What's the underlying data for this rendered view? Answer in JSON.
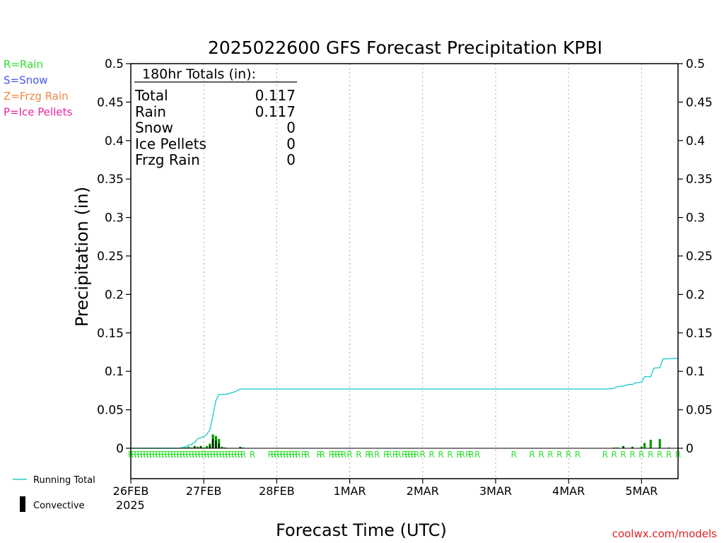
{
  "chart_data": {
    "type": "bar",
    "title": "2025022600 GFS Forecast Precipitation KPBI",
    "ylabel": "Precipitation (in)",
    "xlabel": "Forecast Time (UTC)",
    "ylim": [
      0,
      0.5
    ],
    "y_ticks": [
      "0",
      "0.05",
      "0.1",
      "0.15",
      "0.2",
      "0.25",
      "0.3",
      "0.35",
      "0.4",
      "0.45",
      "0.5"
    ],
    "x_tick_labels": [
      "26FEB",
      "27FEB",
      "28FEB",
      "1MAR",
      "2MAR",
      "3MAR",
      "4MAR",
      "5MAR"
    ],
    "x_year_label": "2025",
    "x_range_hours": [
      0,
      180
    ],
    "grid": "vertical dotted at day boundaries",
    "legend_left": [
      {
        "label": "R=Rain",
        "color": "#33dd33"
      },
      {
        "label": "S=Snow",
        "color": "#4455ee"
      },
      {
        "label": "Z=Frzg Rain",
        "color": "#ee8844"
      },
      {
        "label": "P=Ice Pellets",
        "color": "#ee2299"
      }
    ],
    "legend_bottom": [
      {
        "label": "Running Total",
        "color": "#22cccc",
        "kind": "line"
      },
      {
        "label": "Convective",
        "color": "#000000",
        "kind": "bar"
      }
    ],
    "totals_box": {
      "header": "180hr Totals (in):",
      "rows": [
        {
          "label": "Total",
          "value": "0.117"
        },
        {
          "label": "Rain",
          "value": "0.117"
        },
        {
          "label": "Snow",
          "value": "0"
        },
        {
          "label": "Ice Pellets",
          "value": "0"
        },
        {
          "label": "Frzg Rain",
          "value": "0"
        }
      ]
    },
    "series": [
      {
        "name": "Running Total",
        "color": "#22cccc",
        "points": [
          [
            0,
            0
          ],
          [
            16,
            0
          ],
          [
            17,
            0.001
          ],
          [
            18,
            0.002
          ],
          [
            19,
            0.004
          ],
          [
            20,
            0.005
          ],
          [
            21,
            0.008
          ],
          [
            22,
            0.012
          ],
          [
            23,
            0.014
          ],
          [
            24,
            0.015
          ],
          [
            25,
            0.018
          ],
          [
            26,
            0.024
          ],
          [
            27,
            0.042
          ],
          [
            28,
            0.062
          ],
          [
            29,
            0.07
          ],
          [
            30,
            0.07
          ],
          [
            31,
            0.07
          ],
          [
            32,
            0.071
          ],
          [
            34,
            0.073
          ],
          [
            35,
            0.075
          ],
          [
            36,
            0.077
          ],
          [
            156,
            0.077
          ],
          [
            157,
            0.077
          ],
          [
            159,
            0.078
          ],
          [
            160,
            0.08
          ],
          [
            162,
            0.081
          ],
          [
            164,
            0.083
          ],
          [
            165,
            0.083
          ],
          [
            166,
            0.085
          ],
          [
            168,
            0.086
          ],
          [
            169,
            0.093
          ],
          [
            171,
            0.093
          ],
          [
            172,
            0.104
          ],
          [
            174,
            0.105
          ],
          [
            175,
            0.116
          ],
          [
            180,
            0.117
          ]
        ]
      },
      {
        "name": "Precipitation",
        "color": "#009900",
        "bars": [
          [
            17,
            0.001
          ],
          [
            18,
            0.001
          ],
          [
            19,
            0.002
          ],
          [
            20,
            0.001
          ],
          [
            21,
            0.003
          ],
          [
            22,
            0.002
          ],
          [
            23,
            0.003
          ],
          [
            24,
            0.001
          ],
          [
            25,
            0.003
          ],
          [
            26,
            0.006
          ],
          [
            27,
            0.018
          ],
          [
            28,
            0.016
          ],
          [
            29,
            0.012
          ],
          [
            30,
            0.002
          ],
          [
            31,
            0.001
          ],
          [
            36,
            0.002
          ],
          [
            37,
            0.001
          ],
          [
            159,
            0.001
          ],
          [
            160,
            0.001
          ],
          [
            162,
            0.003
          ],
          [
            165,
            0.002
          ],
          [
            168,
            0.002
          ],
          [
            169,
            0.007
          ],
          [
            171,
            0.011
          ],
          [
            174,
            0.012
          ],
          [
            177,
            0.001
          ]
        ]
      },
      {
        "name": "Convective",
        "color": "#000000",
        "bars": [
          [
            21,
            0.002
          ],
          [
            23,
            0.002
          ],
          [
            26,
            0.003
          ],
          [
            27,
            0.012
          ],
          [
            28,
            0.01
          ],
          [
            29,
            0.006
          ],
          [
            36,
            0.001
          ],
          [
            162,
            0.002
          ],
          [
            165,
            0.001
          ]
        ]
      }
    ],
    "precip_type_marks": [
      {
        "symbol": "R",
        "hours": [
          0,
          1,
          2,
          3,
          4,
          5,
          6,
          7,
          8,
          9,
          10,
          11,
          12,
          13,
          14,
          15,
          16,
          17,
          18,
          19,
          20,
          21,
          22,
          23,
          24,
          25,
          26,
          27,
          28,
          29,
          30,
          31,
          32,
          33,
          34,
          35,
          36,
          37,
          40,
          46,
          47,
          48,
          49,
          50,
          51,
          52,
          53,
          54,
          55,
          57,
          58,
          62,
          63,
          66,
          67,
          68,
          69,
          70,
          72,
          75,
          78,
          79,
          81,
          84,
          85,
          87,
          88,
          90,
          91,
          92,
          93,
          94,
          96,
          99,
          102,
          105,
          108,
          109,
          111,
          112,
          114,
          126,
          132,
          135,
          138,
          141,
          144,
          147,
          156,
          159,
          162,
          165,
          168,
          171,
          174,
          177,
          180
        ]
      }
    ],
    "credit": "coolwx.com/models"
  }
}
